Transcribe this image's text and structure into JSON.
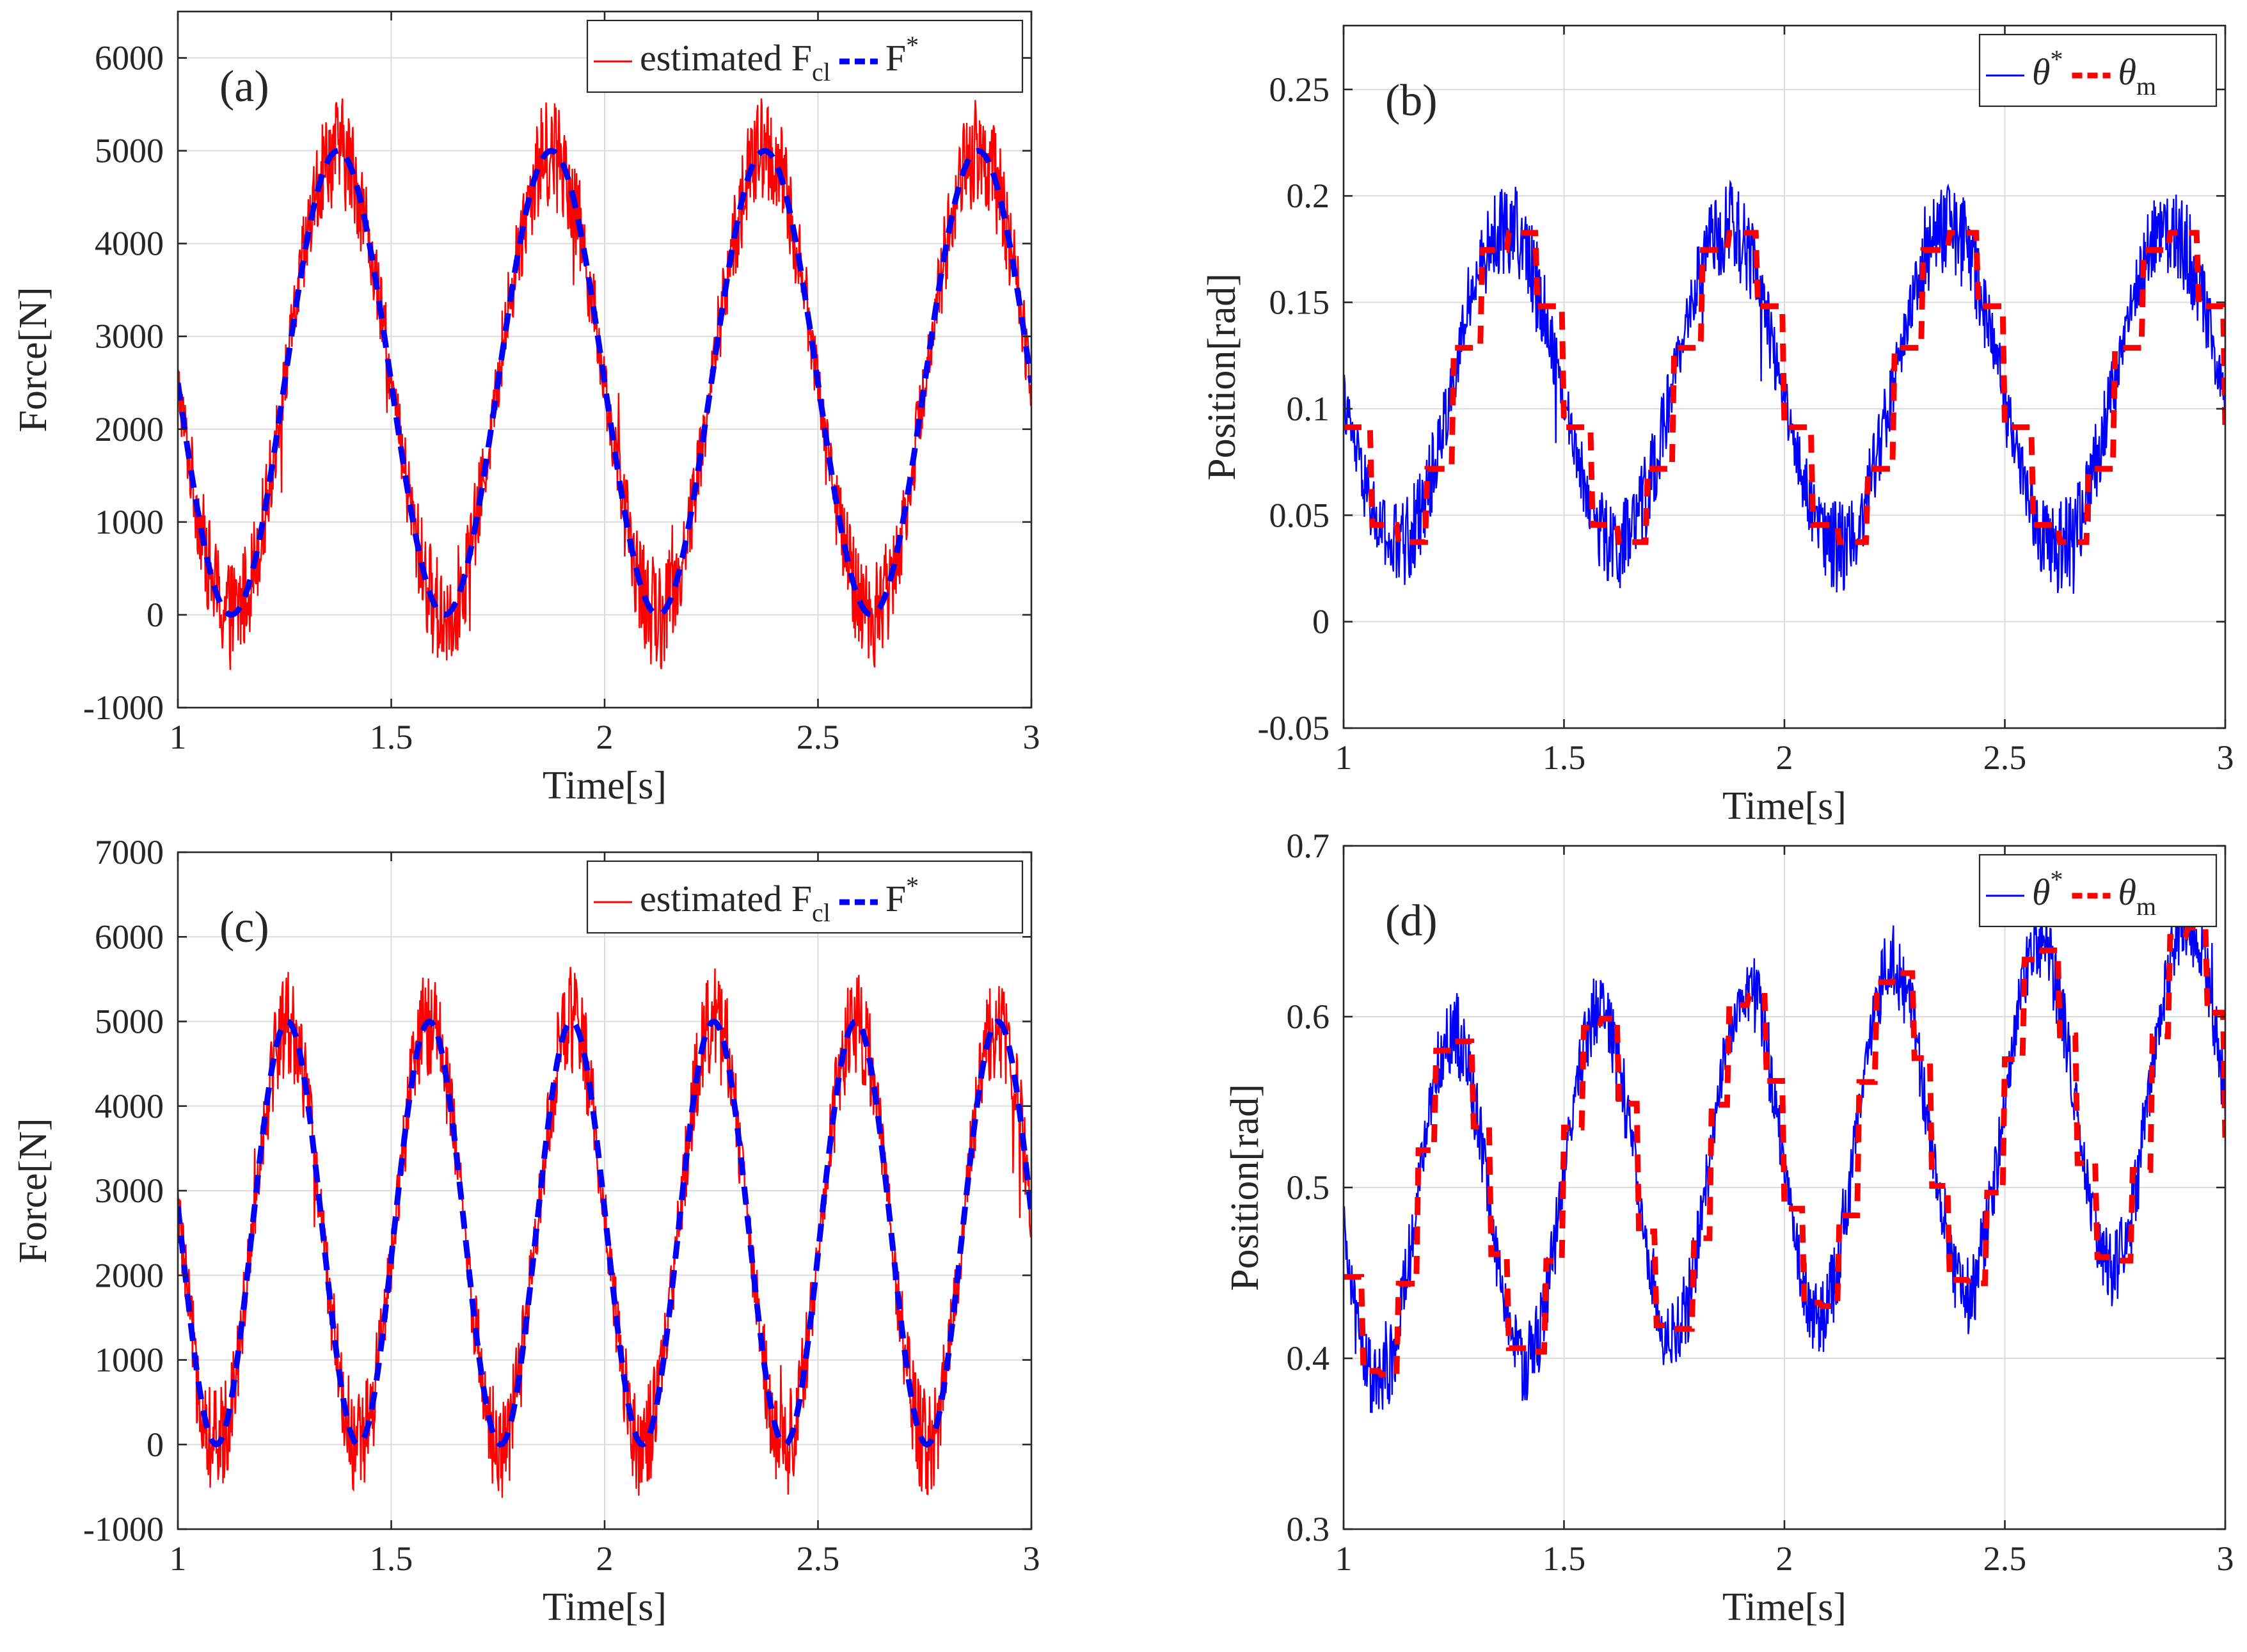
{
  "chart_data": [
    {
      "type": "line",
      "panel_label": "(a)",
      "xlabel": "Time[s]",
      "ylabel": "Force[N]",
      "xlim": [
        1,
        3
      ],
      "ylim": [
        -1000,
        6500
      ],
      "xticks": [
        1,
        1.5,
        2,
        2.5,
        3
      ],
      "xtick_labels": [
        "1",
        "1.5",
        "2",
        "2.5",
        "3"
      ],
      "yticks": [
        -1000,
        0,
        1000,
        2000,
        3000,
        4000,
        5000,
        6000
      ],
      "ytick_labels": [
        "-1000",
        "0",
        "1000",
        "2000",
        "3000",
        "4000",
        "5000",
        "6000"
      ],
      "grid": true,
      "legend_position": "top-right",
      "reference_wave": {
        "mean": 2500,
        "amplitude": 2500,
        "period_s": 0.5,
        "first_min_s": 1.125,
        "noise": 600
      },
      "series": [
        {
          "name": "estimated F",
          "sub": "cl",
          "sup": "",
          "color": "#ff0000",
          "style": "solid"
        },
        {
          "name": "F",
          "sub": "",
          "sup": "*",
          "color": "#0000ff",
          "style": "dashed"
        }
      ]
    },
    {
      "type": "line",
      "panel_label": "(b)",
      "xlabel": "Time[s]",
      "ylabel": "Position[rad]",
      "xlim": [
        1,
        3
      ],
      "ylim": [
        -0.05,
        0.28
      ],
      "xticks": [
        1,
        1.5,
        2,
        2.5,
        3
      ],
      "xtick_labels": [
        "1",
        "1.5",
        "2",
        "2.5",
        "3"
      ],
      "yticks": [
        -0.05,
        0,
        0.05,
        0.1,
        0.15,
        0.2,
        0.25
      ],
      "ytick_labels": [
        "-0.05",
        "0",
        "0.05",
        "0.1",
        "0.15",
        "0.2",
        "0.25"
      ],
      "grid": true,
      "legend_position": "top-right",
      "reference_wave": {
        "mean": 0.11,
        "amplitude": 0.075,
        "period_s": 0.5,
        "first_min_s": 1.14,
        "noise": 0.022
      },
      "series": [
        {
          "name": "θ",
          "sub": "",
          "sup": "*",
          "color": "#0000ff",
          "style": "solid"
        },
        {
          "name": "θ",
          "sub": "m",
          "sup": "",
          "color": "#ff0000",
          "style": "dashed"
        }
      ]
    },
    {
      "type": "line",
      "panel_label": "(c)",
      "xlabel": "Time[s]",
      "ylabel": "Force[N]",
      "xlim": [
        1,
        3
      ],
      "ylim": [
        -1000,
        7000
      ],
      "xticks": [
        1,
        1.5,
        2,
        2.5,
        3
      ],
      "xtick_labels": [
        "1",
        "1.5",
        "2",
        "2.5",
        "3"
      ],
      "yticks": [
        -1000,
        0,
        1000,
        2000,
        3000,
        4000,
        5000,
        6000,
        7000
      ],
      "ytick_labels": [
        "-1000",
        "0",
        "1000",
        "2000",
        "3000",
        "4000",
        "5000",
        "6000",
        "7000"
      ],
      "grid": true,
      "legend_position": "top-right",
      "reference_wave": {
        "mean": 2500,
        "amplitude": 2500,
        "period_s": 0.333,
        "first_min_s": 1.09,
        "noise": 650
      },
      "series": [
        {
          "name": "estimated F",
          "sub": "cl",
          "sup": "",
          "color": "#ff0000",
          "style": "solid"
        },
        {
          "name": "F",
          "sub": "",
          "sup": "*",
          "color": "#0000ff",
          "style": "dashed"
        }
      ]
    },
    {
      "type": "line",
      "panel_label": "(d)",
      "xlabel": "Time[s]",
      "ylabel": "Position[rad]",
      "xlim": [
        1,
        3
      ],
      "ylim": [
        0.3,
        0.7
      ],
      "xticks": [
        1,
        1.5,
        2,
        2.5,
        3
      ],
      "xtick_labels": [
        "1",
        "1.5",
        "2",
        "2.5",
        "3"
      ],
      "yticks": [
        0.3,
        0.4,
        0.5,
        0.6,
        0.7
      ],
      "ytick_labels": [
        "0.3",
        "0.4",
        "0.5",
        "0.6",
        "0.7"
      ],
      "grid": true,
      "legend_position": "top-right",
      "reference_wave": {
        "mean": 0.48,
        "amplitude": 0.1,
        "period_s": 0.333,
        "first_min_s": 1.1,
        "noise": 0.025,
        "trend_per_s": 0.04
      },
      "series": [
        {
          "name": "θ",
          "sub": "",
          "sup": "*",
          "color": "#0000ff",
          "style": "solid"
        },
        {
          "name": "θ",
          "sub": "m",
          "sup": "",
          "color": "#ff0000",
          "style": "dashed"
        }
      ]
    }
  ]
}
